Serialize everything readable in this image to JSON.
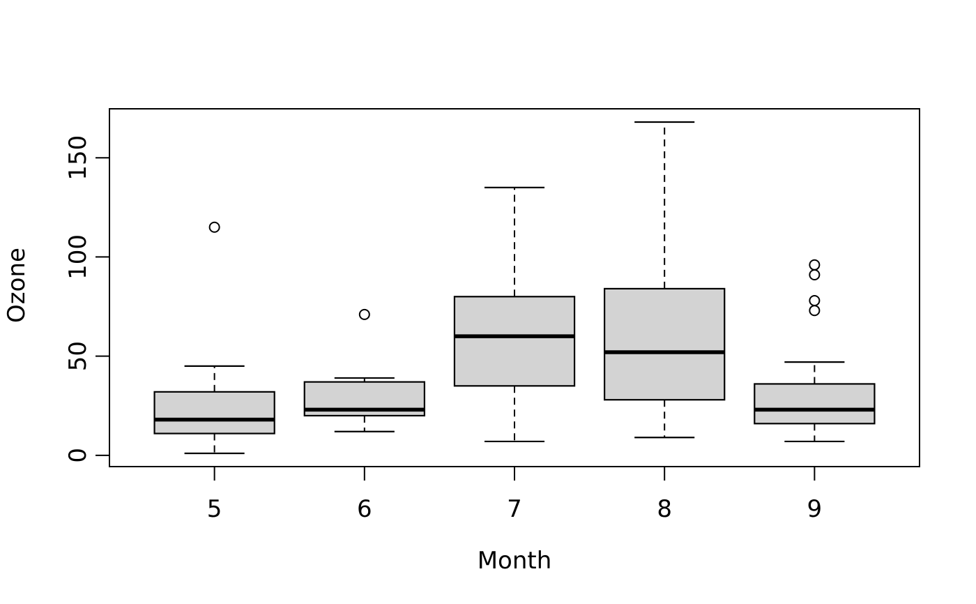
{
  "chart_data": {
    "type": "boxplot",
    "title": "",
    "xlabel": "Month",
    "ylabel": "Ozone",
    "categories": [
      "5",
      "6",
      "7",
      "8",
      "9"
    ],
    "y_ticks": [
      0,
      50,
      100,
      150
    ],
    "xlim": [
      0.3,
      5.7
    ],
    "ylim": [
      -5.68,
      174.68
    ],
    "grid": false,
    "legend": "none",
    "boxes": [
      {
        "month": "5",
        "whisker_low": 1,
        "q1": 11,
        "median": 18,
        "q3": 32,
        "whisker_high": 45,
        "outliers": [
          115
        ]
      },
      {
        "month": "6",
        "whisker_low": 12,
        "q1": 20,
        "median": 23,
        "q3": 37,
        "whisker_high": 39,
        "outliers": [
          71
        ]
      },
      {
        "month": "7",
        "whisker_low": 7,
        "q1": 35,
        "median": 60,
        "q3": 80,
        "whisker_high": 135,
        "outliers": []
      },
      {
        "month": "8",
        "whisker_low": 9,
        "q1": 28,
        "median": 52,
        "q3": 84,
        "whisker_high": 168,
        "outliers": []
      },
      {
        "month": "9",
        "whisker_low": 7,
        "q1": 16,
        "median": 23,
        "q3": 36,
        "whisker_high": 47,
        "outliers": [
          73,
          78,
          91,
          96
        ]
      }
    ],
    "colors": {
      "box_fill": "#d3d3d3",
      "stroke": "#000000",
      "background": "#ffffff"
    }
  }
}
